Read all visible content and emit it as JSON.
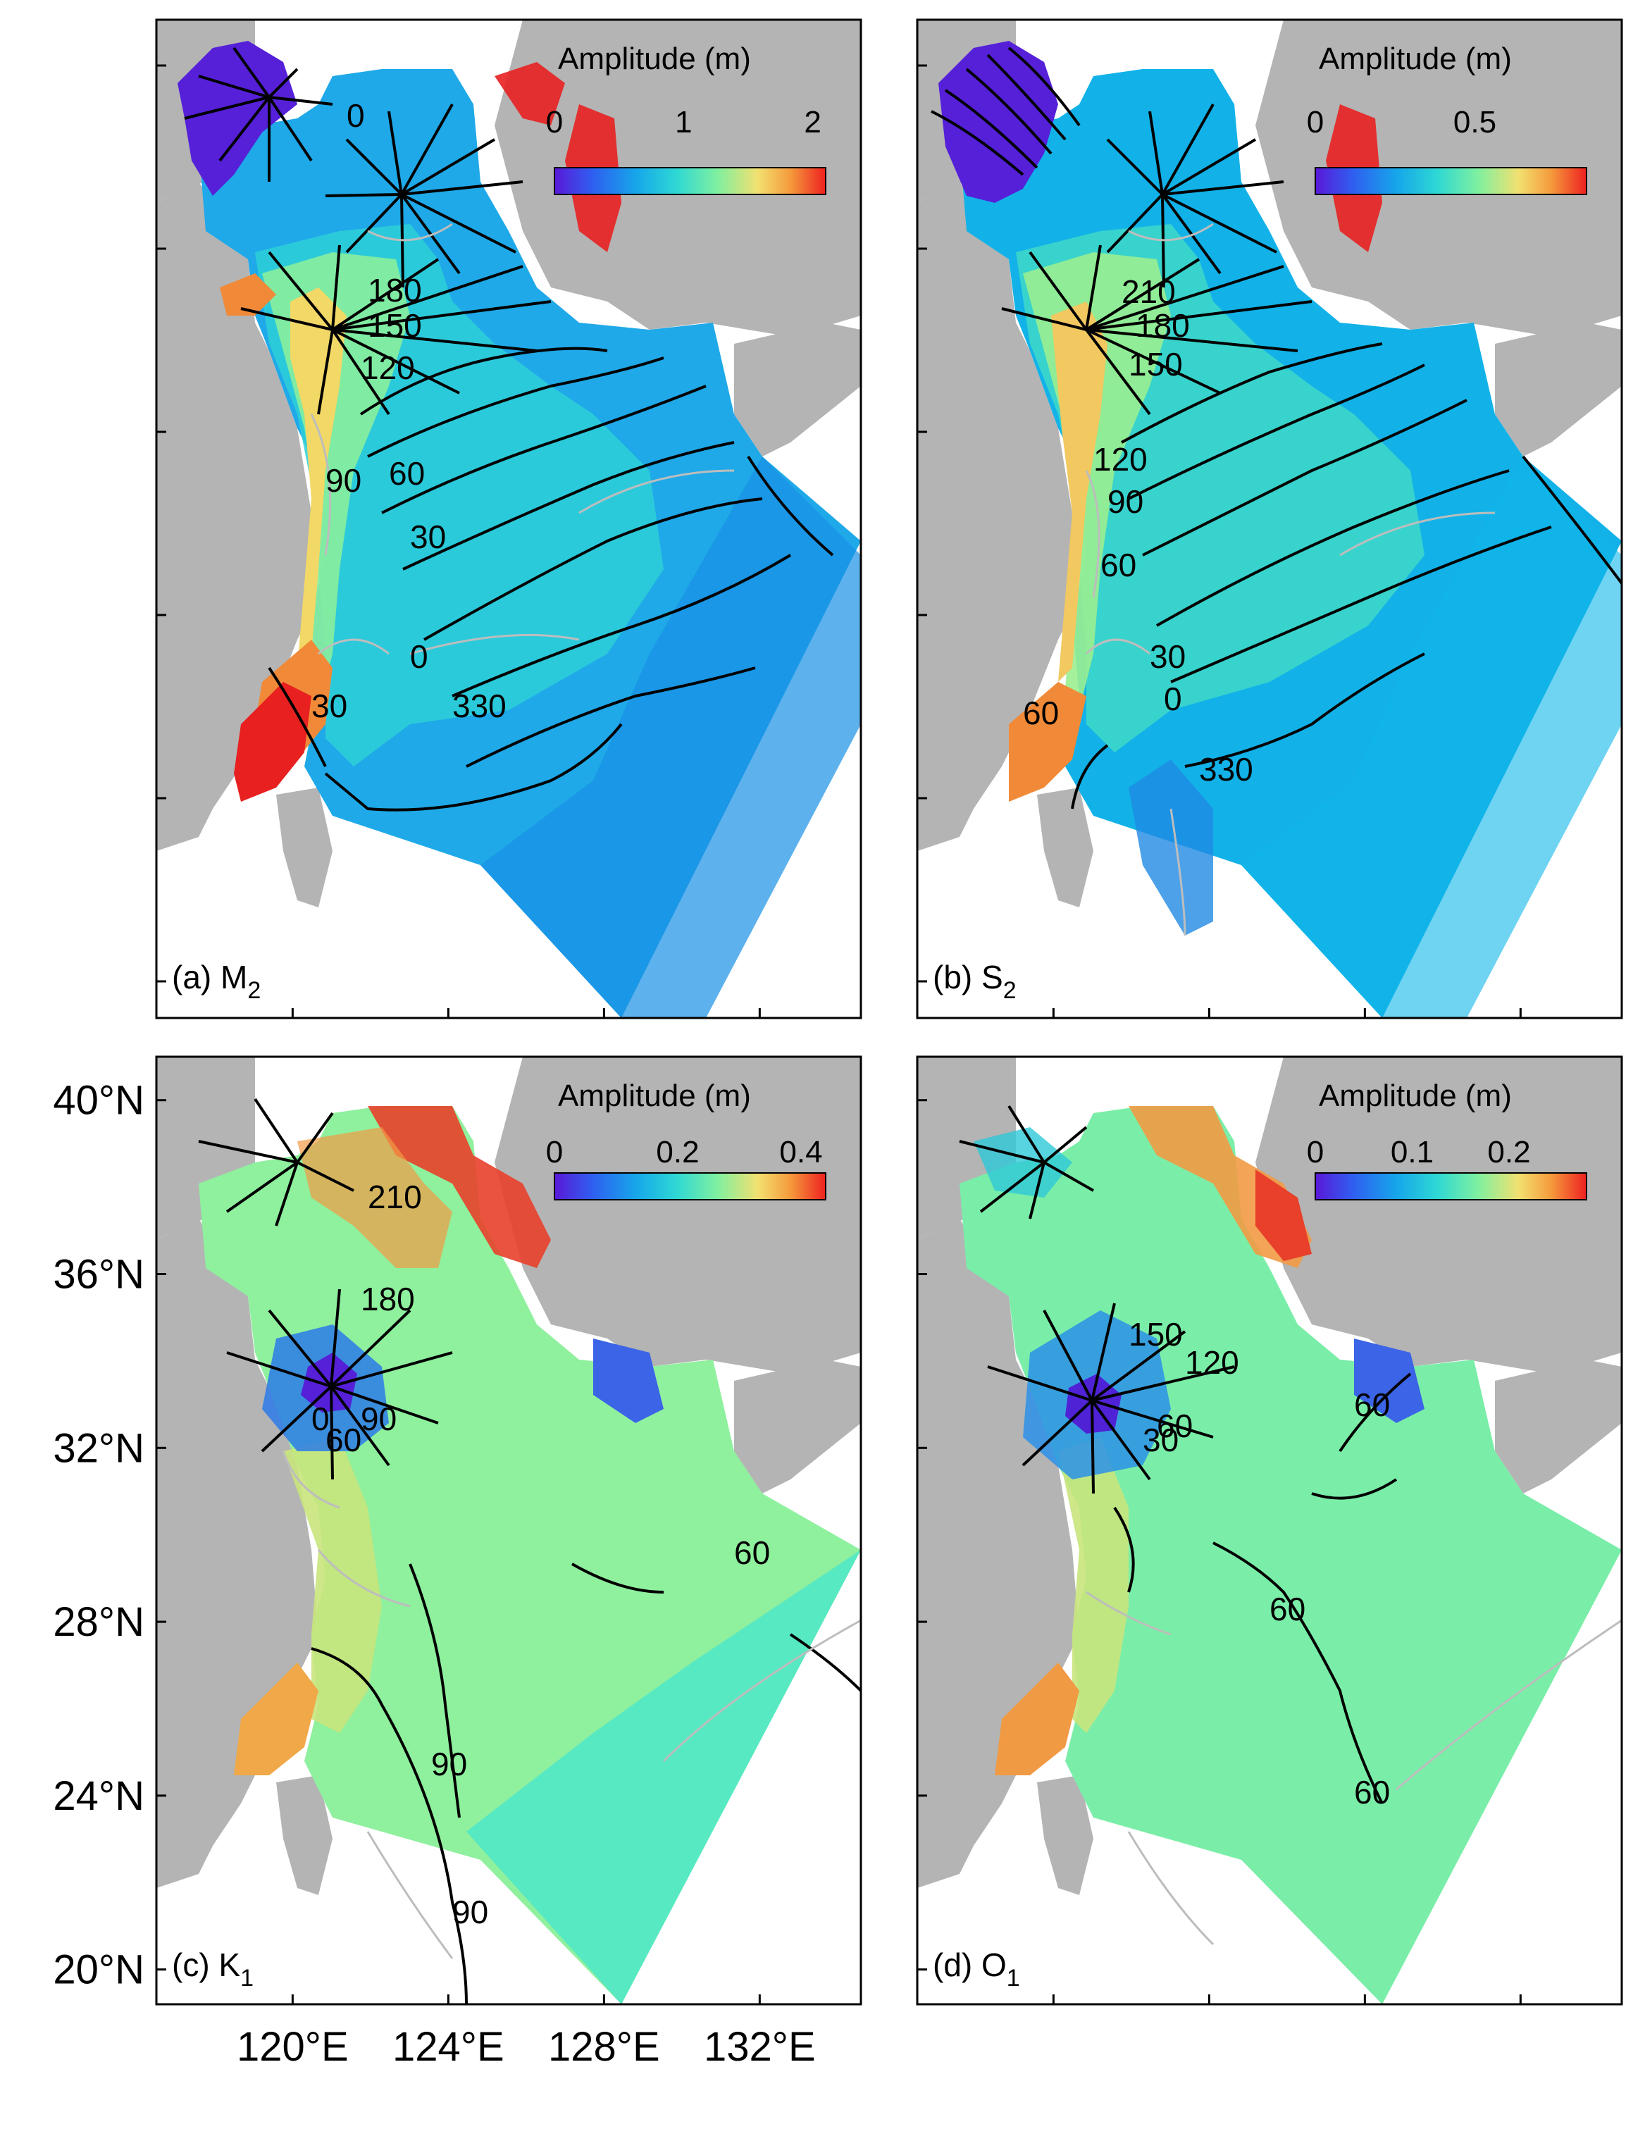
{
  "figure": {
    "panels": [
      {
        "id": "a",
        "label_prefix": "(a) ",
        "label_main": "M",
        "label_sub": "2",
        "colorbar": {
          "title": "Amplitude (m)",
          "ticks": [
            "0",
            "1",
            "2"
          ],
          "tick_values": [
            0,
            1,
            2
          ],
          "range": [
            0,
            2.1
          ]
        },
        "contour_labels": [
          "0",
          "180",
          "150",
          "120",
          "90",
          "60",
          "30",
          "0",
          "330",
          "30"
        ]
      },
      {
        "id": "b",
        "label_prefix": "(b) ",
        "label_main": "S",
        "label_sub": "2",
        "colorbar": {
          "title": "Amplitude (m)",
          "ticks": [
            "0",
            "0.5"
          ],
          "tick_values": [
            0,
            0.5
          ],
          "range": [
            0,
            0.85
          ]
        },
        "contour_labels": [
          "210",
          "180",
          "150",
          "120",
          "90",
          "60",
          "30",
          "0",
          "330",
          "60"
        ]
      },
      {
        "id": "c",
        "label_prefix": "(c) ",
        "label_main": "K",
        "label_sub": "1",
        "colorbar": {
          "title": "Amplitude (m)",
          "ticks": [
            "0",
            "0.2",
            "0.4"
          ],
          "tick_values": [
            0,
            0.2,
            0.4
          ],
          "range": [
            0,
            0.44
          ]
        },
        "contour_labels": [
          "210",
          "180",
          "90",
          "60",
          "0",
          "60",
          "90",
          "90"
        ]
      },
      {
        "id": "d",
        "label_prefix": "(d) ",
        "label_main": "O",
        "label_sub": "1",
        "colorbar": {
          "title": "Amplitude (m)",
          "ticks": [
            "0",
            "0.1",
            "0.2"
          ],
          "tick_values": [
            0,
            0.1,
            0.2
          ],
          "range": [
            0,
            0.28
          ]
        },
        "contour_labels": [
          "150",
          "120",
          "60",
          "30",
          "60",
          "60",
          "60"
        ]
      }
    ],
    "axes": {
      "lat_ticks": [
        "40°N",
        "36°N",
        "32°N",
        "28°N",
        "24°N",
        "20°N"
      ],
      "lat_values": [
        40,
        36,
        32,
        28,
        24,
        20
      ],
      "lon_ticks": [
        "120°E",
        "124°E",
        "128°E",
        "132°E"
      ],
      "lon_values": [
        120,
        124,
        128,
        132
      ],
      "lon_range": [
        116.5,
        134.6
      ],
      "lat_range": [
        19.2,
        41.0
      ]
    },
    "colors": {
      "land": "#b4b4b4",
      "colormap": [
        "#5a18d8",
        "#2f5ff0",
        "#16a6ea",
        "#2ed8d4",
        "#7ff0a0",
        "#f2e070",
        "#f59a3c",
        "#ee2020"
      ]
    }
  }
}
